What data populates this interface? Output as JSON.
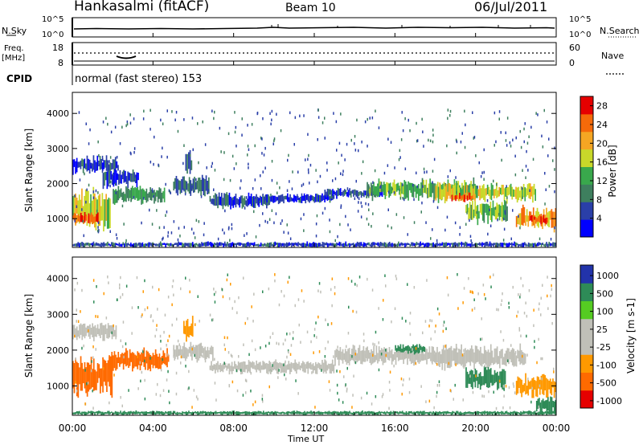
{
  "header": {
    "station": "Hankasalmi (fitACF)",
    "beam": "Beam 10",
    "date": "06/Jul/2011"
  },
  "noise_panel": {
    "left_label": "N.Sky",
    "right_label": "N.Search",
    "left_ticks": [
      "10^5",
      "10^0"
    ],
    "right_ticks": [
      "10^5",
      "10^0"
    ]
  },
  "freq_panel": {
    "left_label_1": "Freq.",
    "left_label_2": "[MHz]",
    "right_label": "Nave",
    "left_ticks": [
      "18",
      "8"
    ],
    "right_ticks": [
      "60",
      "0"
    ]
  },
  "cpid": {
    "label": "CPID",
    "text": "normal (fast stereo) 153"
  },
  "x_axis": {
    "label": "Time UT",
    "ticks": [
      "00:00",
      "04:00",
      "08:00",
      "12:00",
      "16:00",
      "20:00",
      "00:00"
    ]
  },
  "colors": {
    "power_scale": [
      "#0000ff",
      "#2a3fa8",
      "#3e7f5e",
      "#39a84c",
      "#c8d82a",
      "#f5a623",
      "#f56a0a",
      "#e60000"
    ],
    "velocity_scale": [
      "#e60000",
      "#ff6a00",
      "#ff9900",
      "#c0c0b8",
      "#c0c0b8",
      "#55cc22",
      "#2e8b57",
      "#2233aa"
    ]
  },
  "chart_data": [
    {
      "type": "heatmap",
      "name_on_chart": "Power [dB]",
      "ylabel": "Slant Range [km]",
      "xlabel": "Time UT",
      "xlim": [
        0,
        24
      ],
      "ylim": [
        180,
        4600
      ],
      "yticks": [
        1000,
        2000,
        3000,
        4000
      ],
      "colorbar": {
        "label": "Power [dB]",
        "ticks": [
          4,
          8,
          12,
          16,
          20,
          24,
          28
        ],
        "range": [
          0,
          30
        ]
      },
      "bands": [
        {
          "t0": 0.0,
          "t1": 24.0,
          "r0": 190,
          "r1": 330,
          "value": 6
        },
        {
          "t0": 0.0,
          "t1": 1.9,
          "r0": 750,
          "r1": 1800,
          "value": 18
        },
        {
          "t0": 0.0,
          "t1": 1.3,
          "r0": 850,
          "r1": 1150,
          "value": 27
        },
        {
          "t0": 0.0,
          "t1": 2.3,
          "r0": 2300,
          "r1": 2750,
          "value": 5
        },
        {
          "t0": 1.5,
          "t1": 3.3,
          "r0": 1900,
          "r1": 2400,
          "value": 6
        },
        {
          "t0": 2.0,
          "t1": 4.6,
          "r0": 1450,
          "r1": 1900,
          "value": 12
        },
        {
          "t0": 5.0,
          "t1": 6.8,
          "r0": 1700,
          "r1": 2200,
          "value": 8
        },
        {
          "t0": 5.6,
          "t1": 5.95,
          "r0": 2200,
          "r1": 2900,
          "value": 6
        },
        {
          "t0": 6.8,
          "t1": 9.8,
          "r0": 1300,
          "r1": 1700,
          "value": 6
        },
        {
          "t0": 9.5,
          "t1": 13.0,
          "r0": 1450,
          "r1": 1700,
          "value": 5
        },
        {
          "t0": 12.5,
          "t1": 15.4,
          "r0": 1600,
          "r1": 1850,
          "value": 6
        },
        {
          "t0": 14.6,
          "t1": 20.0,
          "r0": 1550,
          "r1": 2100,
          "value": 14
        },
        {
          "t0": 18.0,
          "t1": 23.0,
          "r0": 1500,
          "r1": 2000,
          "value": 18
        },
        {
          "t0": 18.8,
          "t1": 20.0,
          "r0": 1500,
          "r1": 1720,
          "value": 26
        },
        {
          "t0": 19.5,
          "t1": 21.6,
          "r0": 900,
          "r1": 1500,
          "value": 15
        },
        {
          "t0": 22.0,
          "t1": 24.0,
          "r0": 700,
          "r1": 1300,
          "value": 22
        },
        {
          "t0": 22.7,
          "t1": 23.6,
          "r0": 850,
          "r1": 1100,
          "value": 28
        }
      ]
    },
    {
      "type": "heatmap",
      "name_on_chart": "Velocity [m s^-1]",
      "ylabel": "Slant Range [km]",
      "xlabel": "Time UT",
      "xlim": [
        0,
        24
      ],
      "ylim": [
        180,
        4600
      ],
      "yticks": [
        1000,
        2000,
        3000,
        4000
      ],
      "colorbar": {
        "label": "Velocity [m s-1]",
        "ticks": [
          "1000",
          "500",
          "100",
          "25",
          "-25",
          "-100",
          "-500",
          "-1000"
        ]
      },
      "bands": [
        {
          "t0": 0.0,
          "t1": 24.0,
          "r0": 190,
          "r1": 300,
          "value": 150
        },
        {
          "t0": 0.0,
          "t1": 2.0,
          "r0": 800,
          "r1": 1800,
          "value": -200
        },
        {
          "t0": 0.0,
          "t1": 2.2,
          "r0": 2300,
          "r1": 2750,
          "value": 0
        },
        {
          "t0": 1.8,
          "t1": 4.8,
          "r0": 1450,
          "r1": 2000,
          "value": -300
        },
        {
          "t0": 5.0,
          "t1": 7.0,
          "r0": 1700,
          "r1": 2200,
          "value": 0
        },
        {
          "t0": 5.5,
          "t1": 6.0,
          "r0": 2300,
          "r1": 2900,
          "value": -150
        },
        {
          "t0": 6.8,
          "t1": 13.0,
          "r0": 1350,
          "r1": 1700,
          "value": 0
        },
        {
          "t0": 13.0,
          "t1": 18.0,
          "r0": 1600,
          "r1": 2100,
          "value": 0
        },
        {
          "t0": 16.0,
          "t1": 17.5,
          "r0": 1900,
          "r1": 2150,
          "value": 120
        },
        {
          "t0": 18.0,
          "t1": 22.5,
          "r0": 1500,
          "r1": 2100,
          "value": 0
        },
        {
          "t0": 19.5,
          "t1": 21.5,
          "r0": 900,
          "r1": 1500,
          "value": 150
        },
        {
          "t0": 22.0,
          "t1": 24.0,
          "r0": 700,
          "r1": 1300,
          "value": -100
        },
        {
          "t0": 23.0,
          "t1": 24.0,
          "r0": 200,
          "r1": 700,
          "value": 150
        }
      ]
    }
  ]
}
